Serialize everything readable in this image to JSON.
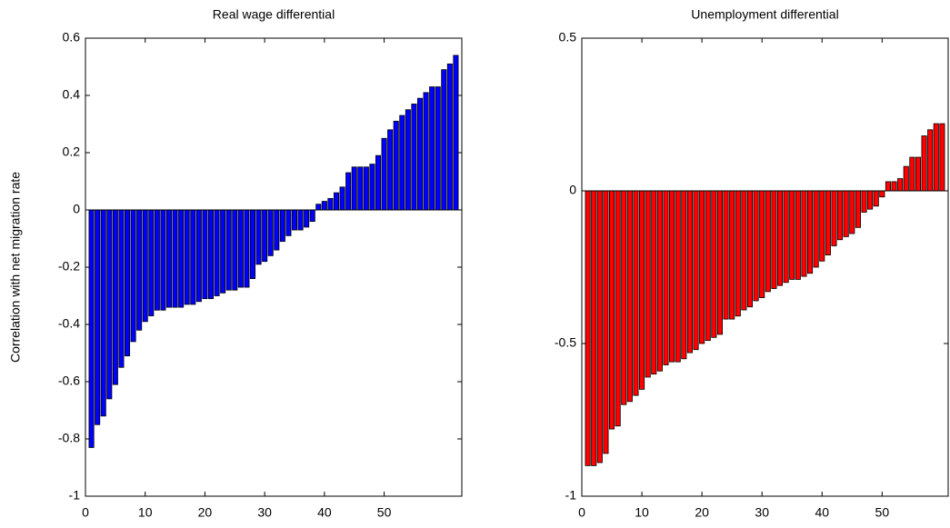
{
  "chart_data": [
    {
      "type": "bar",
      "title": "Real wage differential",
      "ylabel": "Correlation with net migration rate",
      "color": "#0000ff",
      "values": [
        -0.83,
        -0.75,
        -0.72,
        -0.66,
        -0.61,
        -0.55,
        -0.51,
        -0.46,
        -0.42,
        -0.39,
        -0.37,
        -0.35,
        -0.35,
        -0.34,
        -0.34,
        -0.34,
        -0.33,
        -0.33,
        -0.32,
        -0.31,
        -0.31,
        -0.3,
        -0.29,
        -0.28,
        -0.28,
        -0.27,
        -0.27,
        -0.24,
        -0.19,
        -0.18,
        -0.16,
        -0.14,
        -0.11,
        -0.09,
        -0.07,
        -0.07,
        -0.06,
        -0.04,
        0.02,
        0.03,
        0.04,
        0.06,
        0.08,
        0.13,
        0.15,
        0.15,
        0.15,
        0.16,
        0.19,
        0.25,
        0.28,
        0.31,
        0.33,
        0.35,
        0.37,
        0.39,
        0.41,
        0.43,
        0.43,
        0.49,
        0.51,
        0.54
      ],
      "xlim": [
        0,
        63
      ],
      "xticks": [
        0,
        10,
        20,
        30,
        40,
        50
      ],
      "ylim": [
        -1,
        0.6
      ],
      "yticks": [
        -1,
        -0.8,
        -0.6,
        -0.4,
        -0.2,
        0,
        0.2,
        0.4,
        0.6
      ]
    },
    {
      "type": "bar",
      "title": "Unemployment differential",
      "color": "#ff0000",
      "values": [
        -0.9,
        -0.9,
        -0.89,
        -0.86,
        -0.78,
        -0.77,
        -0.7,
        -0.69,
        -0.67,
        -0.65,
        -0.61,
        -0.6,
        -0.59,
        -0.57,
        -0.56,
        -0.56,
        -0.55,
        -0.53,
        -0.52,
        -0.5,
        -0.49,
        -0.48,
        -0.47,
        -0.42,
        -0.42,
        -0.41,
        -0.39,
        -0.38,
        -0.36,
        -0.35,
        -0.33,
        -0.32,
        -0.31,
        -0.3,
        -0.29,
        -0.29,
        -0.28,
        -0.27,
        -0.25,
        -0.23,
        -0.21,
        -0.18,
        -0.16,
        -0.15,
        -0.14,
        -0.12,
        -0.07,
        -0.06,
        -0.05,
        -0.02,
        0.03,
        0.03,
        0.04,
        0.08,
        0.11,
        0.11,
        0.18,
        0.2,
        0.22,
        0.22
      ],
      "xlim": [
        0,
        61
      ],
      "xticks": [
        0,
        10,
        20,
        30,
        40,
        50
      ],
      "ylim": [
        -1,
        0.5
      ],
      "yticks": [
        -1,
        -0.5,
        0,
        0.5
      ]
    }
  ]
}
